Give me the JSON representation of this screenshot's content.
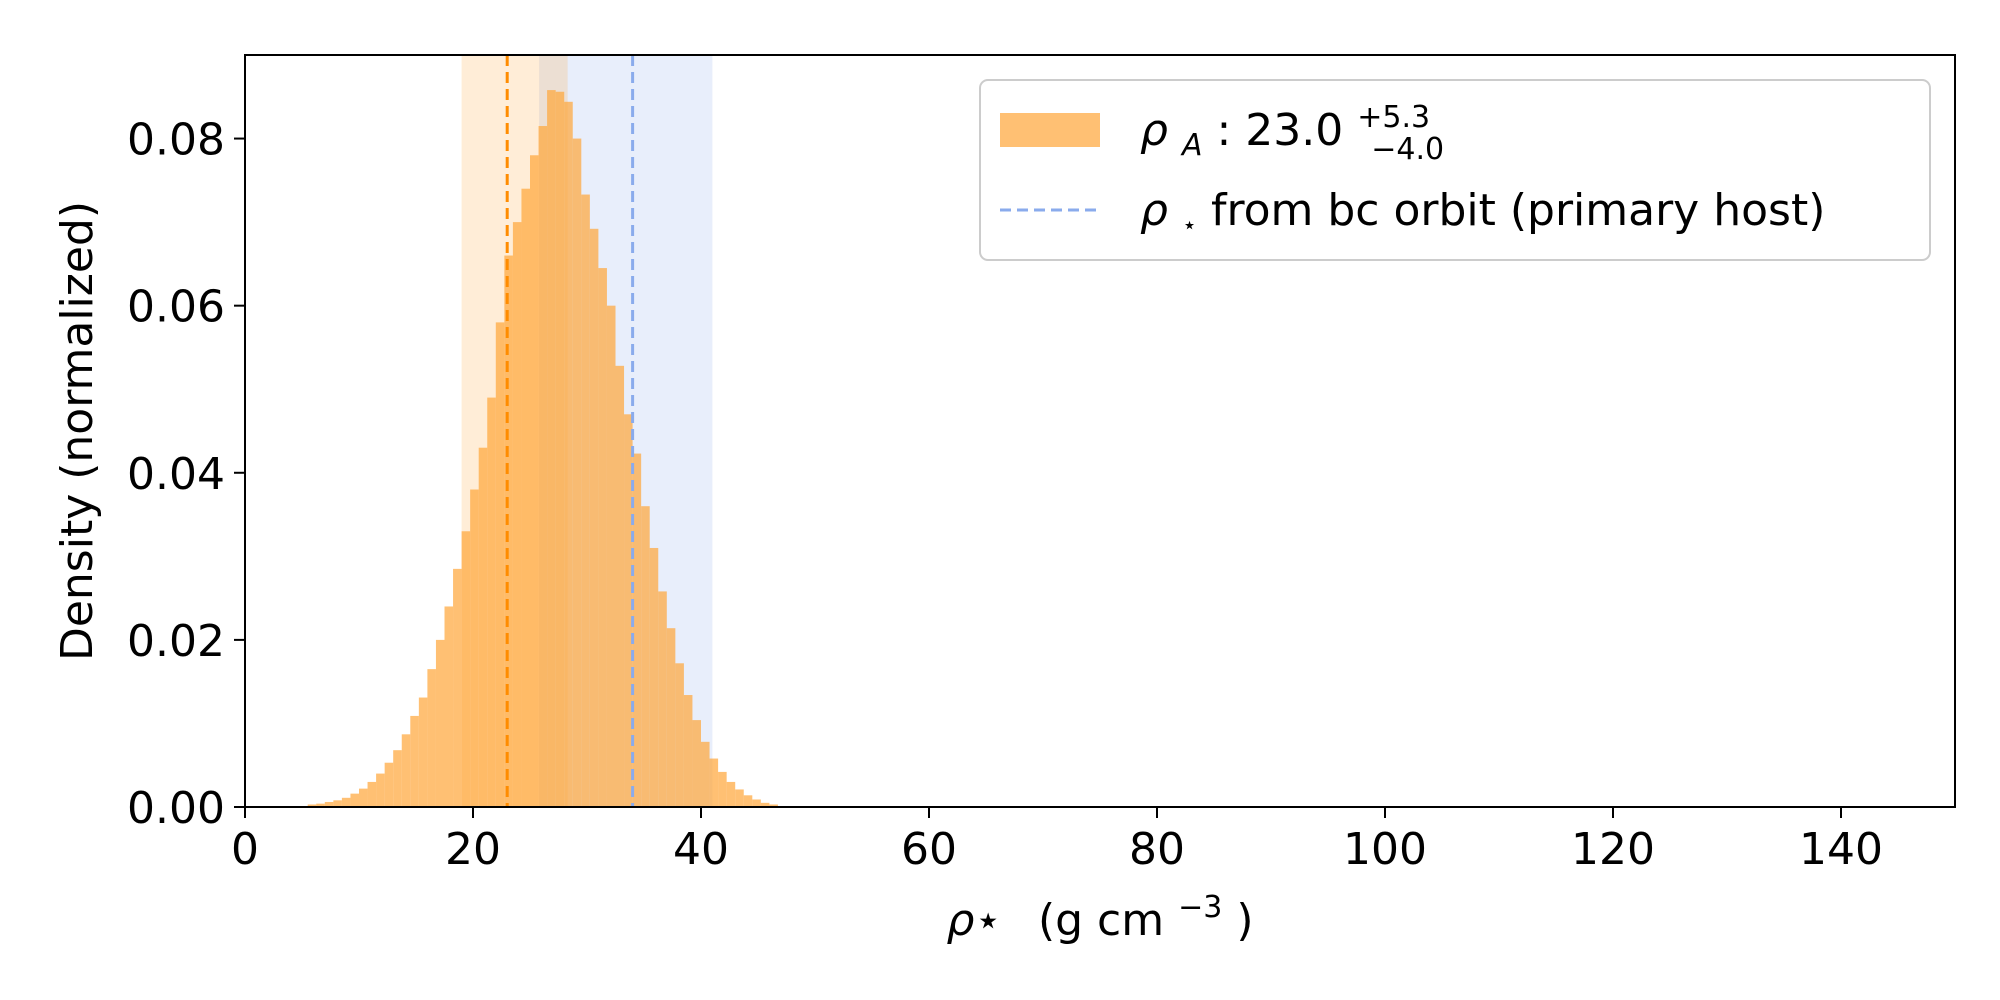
{
  "chart_data": {
    "type": "histogram",
    "x_label": "ρ⋆",
    "x_unit_prefix": "(g cm",
    "x_unit_exp": "−3",
    "x_unit_suffix": ")",
    "y_label": "Density (normalized)",
    "xlim": [
      0,
      150
    ],
    "ylim": [
      0,
      0.09
    ],
    "x_ticks": [
      0,
      20,
      40,
      60,
      80,
      100,
      120,
      140
    ],
    "x_tick_labels": [
      "0",
      "20",
      "40",
      "60",
      "80",
      "100",
      "120",
      "140"
    ],
    "y_ticks": [
      0,
      0.02,
      0.04,
      0.06,
      0.08
    ],
    "y_tick_labels": [
      "0.00",
      "0.02",
      "0.04",
      "0.06",
      "0.08"
    ],
    "grid": false,
    "legend_position": "upper-right",
    "series": [
      {
        "name": "ρA",
        "kind": "histogram",
        "color": "#FFA537",
        "bin_width": 0.75,
        "bins": [
          [
            5.5,
            0.0003
          ],
          [
            6.25,
            0.0004
          ],
          [
            7.0,
            0.0006
          ],
          [
            7.75,
            0.0008
          ],
          [
            8.5,
            0.0011
          ],
          [
            9.25,
            0.0016
          ],
          [
            10.0,
            0.0022
          ],
          [
            10.75,
            0.003
          ],
          [
            11.5,
            0.004
          ],
          [
            12.25,
            0.0053
          ],
          [
            13.0,
            0.0068
          ],
          [
            13.75,
            0.0087
          ],
          [
            14.5,
            0.0109
          ],
          [
            15.25,
            0.0131
          ],
          [
            16.0,
            0.0165
          ],
          [
            16.75,
            0.02
          ],
          [
            17.5,
            0.024
          ],
          [
            18.25,
            0.0285
          ],
          [
            19.0,
            0.033
          ],
          [
            19.75,
            0.038
          ],
          [
            20.5,
            0.043
          ],
          [
            21.25,
            0.049
          ],
          [
            22.0,
            0.058
          ],
          [
            22.75,
            0.066
          ],
          [
            23.5,
            0.07
          ],
          [
            24.25,
            0.074
          ],
          [
            25.0,
            0.078
          ],
          [
            25.75,
            0.0815
          ],
          [
            26.5,
            0.0858
          ],
          [
            27.25,
            0.0856
          ],
          [
            28.0,
            0.0844
          ],
          [
            28.75,
            0.08
          ],
          [
            29.5,
            0.0733
          ],
          [
            30.25,
            0.0692
          ],
          [
            31.0,
            0.0645
          ],
          [
            31.75,
            0.06
          ],
          [
            32.5,
            0.0528
          ],
          [
            33.25,
            0.047
          ],
          [
            34.0,
            0.0423
          ],
          [
            34.75,
            0.036
          ],
          [
            35.5,
            0.031
          ],
          [
            36.25,
            0.0258
          ],
          [
            37.0,
            0.0214
          ],
          [
            37.75,
            0.0172
          ],
          [
            38.5,
            0.0134
          ],
          [
            39.25,
            0.0104
          ],
          [
            40.0,
            0.0078
          ],
          [
            40.75,
            0.0058
          ],
          [
            41.5,
            0.0042
          ],
          [
            42.25,
            0.003
          ],
          [
            43.0,
            0.0021
          ],
          [
            43.75,
            0.0014
          ],
          [
            44.5,
            0.0009
          ],
          [
            45.25,
            0.0005
          ],
          [
            46.0,
            0.0003
          ]
        ]
      }
    ],
    "rho_A": {
      "median": 23.0,
      "median_text": "23.0",
      "err_plus_text": "+5.3",
      "err_minus_text": "−4.0",
      "interval": [
        19.0,
        28.3
      ],
      "color": "#FFA537",
      "line_color": "#FF8C00"
    },
    "rho_orbit": {
      "name": "ρ⋆ from bc orbit (primary host)",
      "value": 34.0,
      "interval": [
        25.8,
        41.0
      ],
      "color": "#8AABEC"
    },
    "legend": {
      "rho_A_prefix": "ρ",
      "rho_A_subscript": "A",
      "rho_A_separator": " : ",
      "orbit_symbol": "ρ",
      "orbit_star": "⋆",
      "orbit_text": " from bc orbit (primary host)"
    }
  }
}
